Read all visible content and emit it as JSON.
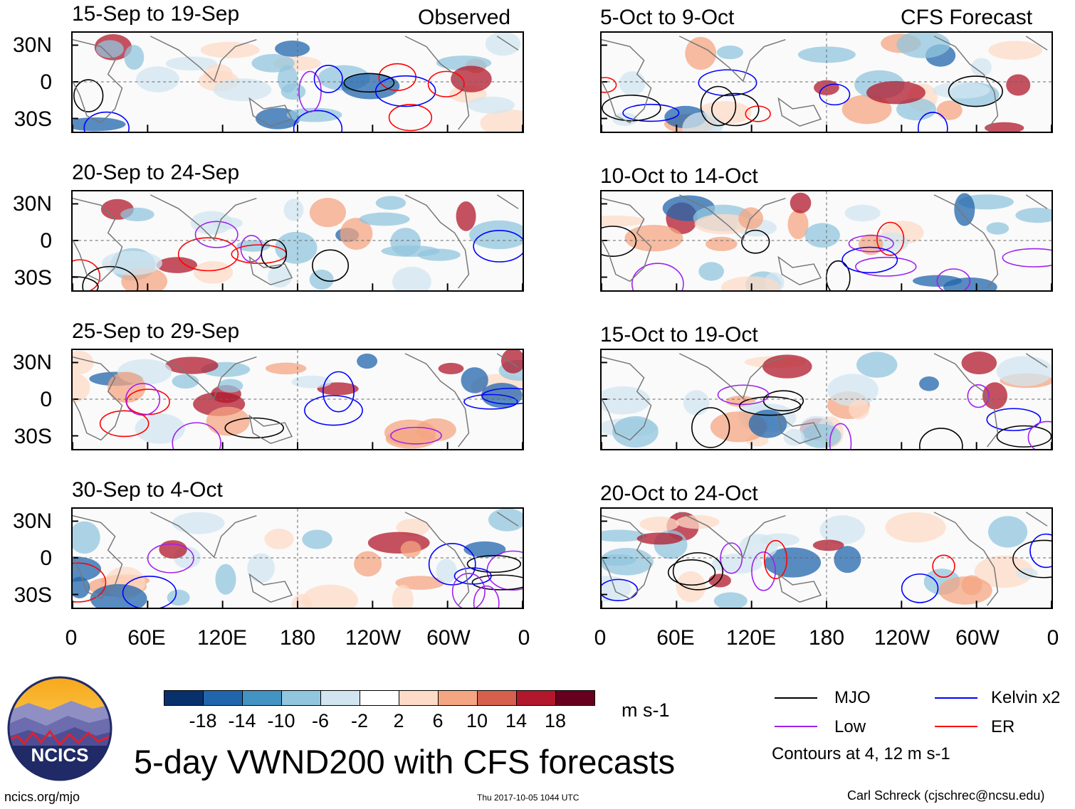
{
  "header": {
    "observed_label": "Observed",
    "forecast_label": "CFS Forecast"
  },
  "panels_left": [
    {
      "title": "15-Sep to 19-Sep"
    },
    {
      "title": "20-Sep to 24-Sep"
    },
    {
      "title": "25-Sep to 29-Sep"
    },
    {
      "title": "30-Sep to 4-Oct"
    }
  ],
  "panels_right": [
    {
      "title": "5-Oct to 9-Oct"
    },
    {
      "title": "10-Oct to 14-Oct"
    },
    {
      "title": "15-Oct to 19-Oct"
    },
    {
      "title": "20-Oct to 24-Oct"
    }
  ],
  "lat_labels": [
    "30N",
    "0",
    "30S"
  ],
  "lon_labels": [
    "0",
    "60E",
    "120E",
    "180",
    "120W",
    "60W",
    "0"
  ],
  "colorbar": {
    "ticks": [
      "-18",
      "-14",
      "-10",
      "-6",
      "-2",
      "2",
      "6",
      "10",
      "14",
      "18"
    ],
    "colors": [
      "#08306b",
      "#2166ac",
      "#4393c3",
      "#92c5de",
      "#d1e5f0",
      "#ffffff",
      "#fddbc7",
      "#f4a582",
      "#d6604d",
      "#b2182b",
      "#67001f"
    ],
    "units": "m s-1"
  },
  "legend": {
    "mjo": {
      "label": "MJO",
      "color": "#000000"
    },
    "kelvin": {
      "label": "Kelvin x2",
      "color": "#0000ff"
    },
    "low": {
      "label": "Low",
      "color": "#a020f0"
    },
    "er": {
      "label": "ER",
      "color": "#ff0000"
    },
    "contours_note": "Contours at 4, 12 m s-1"
  },
  "logo": {
    "text": "NCICS"
  },
  "main_title": "5-day VWND200 with CFS forecasts",
  "footer": {
    "url": "ncics.org/mjo",
    "timestamp": "Thu 2017-10-05 1044 UTC",
    "credit": "Carl Schreck (cjschrec@ncsu.edu)"
  }
}
